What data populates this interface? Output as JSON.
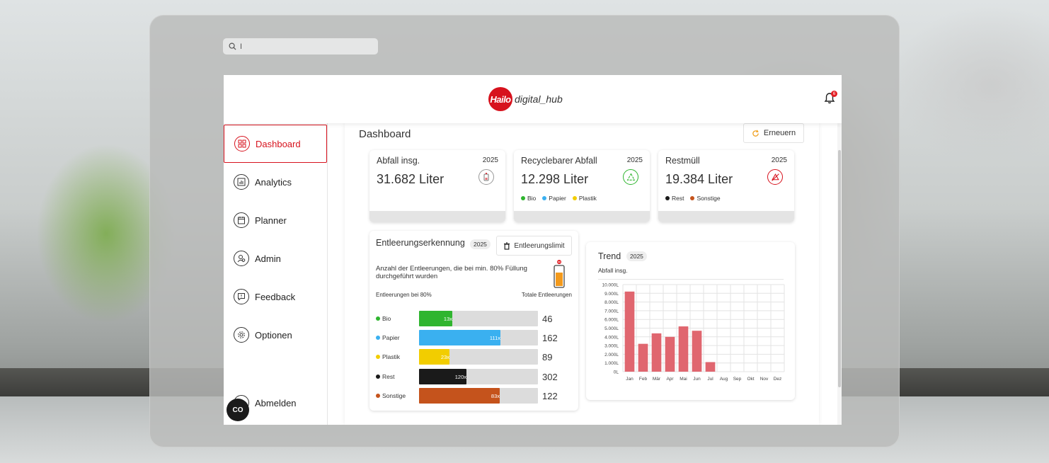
{
  "search": {
    "placeholder": "I"
  },
  "header": {
    "brand_logo": "Hailo",
    "brand_name": "digital_hub",
    "notification_count": "6"
  },
  "sidebar": {
    "items": [
      {
        "label": "Dashboard",
        "icon": "dashboard-icon",
        "active": true
      },
      {
        "label": "Analytics",
        "icon": "analytics-icon",
        "active": false
      },
      {
        "label": "Planner",
        "icon": "planner-icon",
        "active": false
      },
      {
        "label": "Admin",
        "icon": "admin-icon",
        "active": false
      },
      {
        "label": "Feedback",
        "icon": "feedback-icon",
        "active": false
      },
      {
        "label": "Optionen",
        "icon": "gear-icon",
        "active": false
      }
    ],
    "logout_label": "Abmelden",
    "cookie_label": "CO"
  },
  "main": {
    "title": "Dashboard",
    "refresh_label": "Erneuern",
    "cards": [
      {
        "title": "Abfall insg.",
        "year": "2025",
        "value": "31.682 Liter",
        "icon": "bin-icon",
        "legend": []
      },
      {
        "title": "Recyclebarer Abfall",
        "year": "2025",
        "value": "12.298 Liter",
        "icon": "recycle-icon",
        "legend": [
          {
            "label": "Bio",
            "color": "#2fb52f"
          },
          {
            "label": "Papier",
            "color": "#3ab0f0"
          },
          {
            "label": "Plastik",
            "color": "#f2cd00"
          }
        ]
      },
      {
        "title": "Restmüll",
        "year": "2025",
        "value": "19.384 Liter",
        "icon": "no-recycle-icon",
        "legend": [
          {
            "label": "Rest",
            "color": "#1a1a1a"
          },
          {
            "label": "Sonstige",
            "color": "#c5531c"
          }
        ]
      }
    ],
    "emptying": {
      "title": "Entleerungserkennung",
      "year": "2025",
      "limit_label": "Entleerungslimit",
      "description": "Anzahl der Entleerungen, die bei min. 80% Füllung durchgeführt wurden",
      "col_left": "Entleerungen bei 80%",
      "col_right": "Totale Entleerungen",
      "rows": [
        {
          "label": "Bio",
          "color": "#2fb52f",
          "count80": "13x",
          "total": "46"
        },
        {
          "label": "Papier",
          "color": "#3ab0f0",
          "count80": "111x",
          "total": "162"
        },
        {
          "label": "Plastik",
          "color": "#f2cd00",
          "count80": "23x",
          "total": "89"
        },
        {
          "label": "Rest",
          "color": "#1a1a1a",
          "count80": "120x",
          "total": "302"
        },
        {
          "label": "Sonstige",
          "color": "#c5531c",
          "count80": "83x",
          "total": "122"
        }
      ]
    },
    "trend": {
      "title": "Trend",
      "year": "2025",
      "subtitle": "Abfall insg."
    }
  },
  "chart_data": {
    "type": "bar",
    "title": "Trend",
    "subtitle": "Abfall insg.",
    "categories": [
      "Jan",
      "Feb",
      "Mär",
      "Apr",
      "Mai",
      "Jun",
      "Jul",
      "Aug",
      "Sep",
      "Okt",
      "Nov",
      "Dez"
    ],
    "values": [
      9200,
      3200,
      4400,
      4000,
      5200,
      4700,
      1100,
      0,
      0,
      0,
      0,
      0
    ],
    "ylim": [
      0,
      10000
    ],
    "yticks": [
      "0L",
      "1.000L",
      "2.000L",
      "3.000L",
      "4.000L",
      "5.000L",
      "6.000L",
      "7.000L",
      "8.000L",
      "9.000L",
      "10.000L"
    ],
    "color": "#e0666f",
    "grid": true
  }
}
